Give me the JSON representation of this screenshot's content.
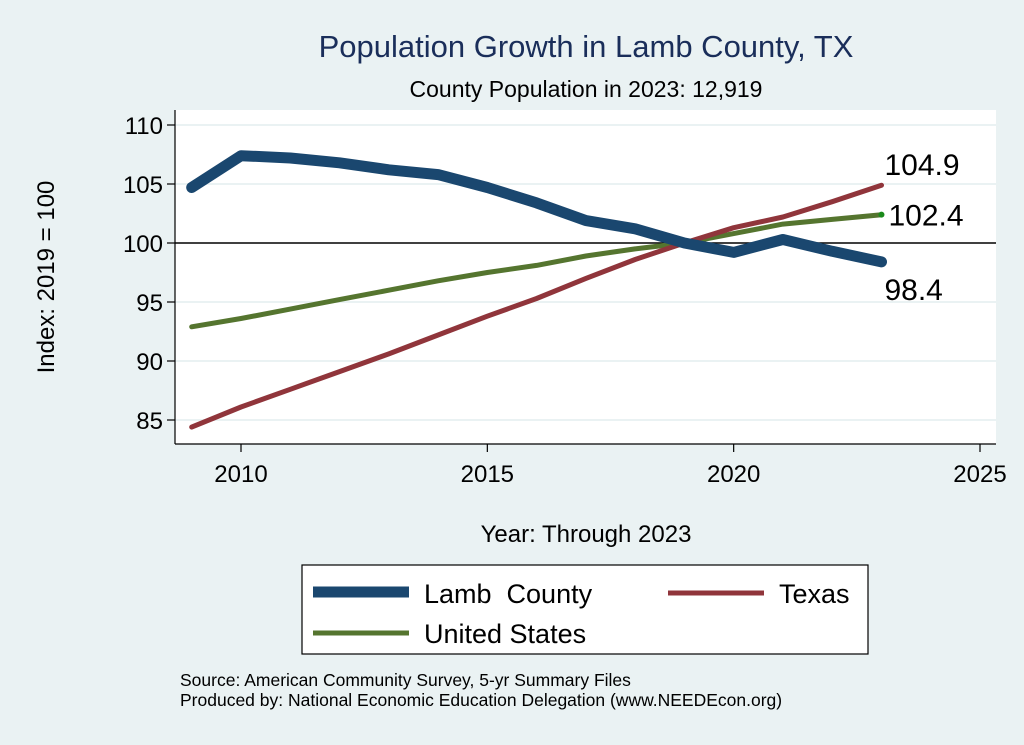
{
  "chart_data": {
    "type": "line",
    "title": "Population Growth in Lamb County, TX",
    "subtitle": "County Population in 2023: 12,919",
    "xlabel": "Year: Through 2023",
    "ylabel": "Index: 2019 = 100",
    "xlim": [
      2009,
      2025.3
    ],
    "ylim": [
      83,
      111.5
    ],
    "xticks": [
      2010,
      2015,
      2020,
      2025
    ],
    "yticks": [
      85,
      90,
      95,
      100,
      105,
      110
    ],
    "reference_line": 100,
    "grid": true,
    "legend_position": "bottom",
    "x": [
      2009,
      2010,
      2011,
      2012,
      2013,
      2014,
      2015,
      2016,
      2017,
      2018,
      2019,
      2020,
      2021,
      2022,
      2023
    ],
    "series": [
      {
        "name": "Lamb  County",
        "color": "#1a476f",
        "values": [
          104.7,
          107.4,
          107.2,
          106.8,
          106.2,
          105.8,
          104.7,
          103.4,
          101.9,
          101.2,
          100.0,
          99.2,
          100.3,
          99.3,
          98.4
        ],
        "end_label": "98.4"
      },
      {
        "name": "Texas",
        "color": "#90353b",
        "values": [
          84.4,
          86.1,
          87.6,
          89.1,
          90.6,
          92.2,
          93.8,
          95.3,
          97.0,
          98.6,
          100.0,
          101.3,
          102.2,
          103.5,
          104.9
        ],
        "end_label": "104.9"
      },
      {
        "name": "United States",
        "color": "#55752f",
        "values": [
          92.9,
          93.6,
          94.4,
          95.2,
          96.0,
          96.8,
          97.5,
          98.1,
          98.9,
          99.5,
          100.0,
          100.8,
          101.6,
          102.0,
          102.4
        ],
        "end_label": "102.4"
      }
    ]
  },
  "footer": {
    "source": "Source: American Community Survey, 5-yr Summary Files",
    "produced": "Produced by: National Economic Education Delegation (www.NEEDEcon.org)"
  }
}
